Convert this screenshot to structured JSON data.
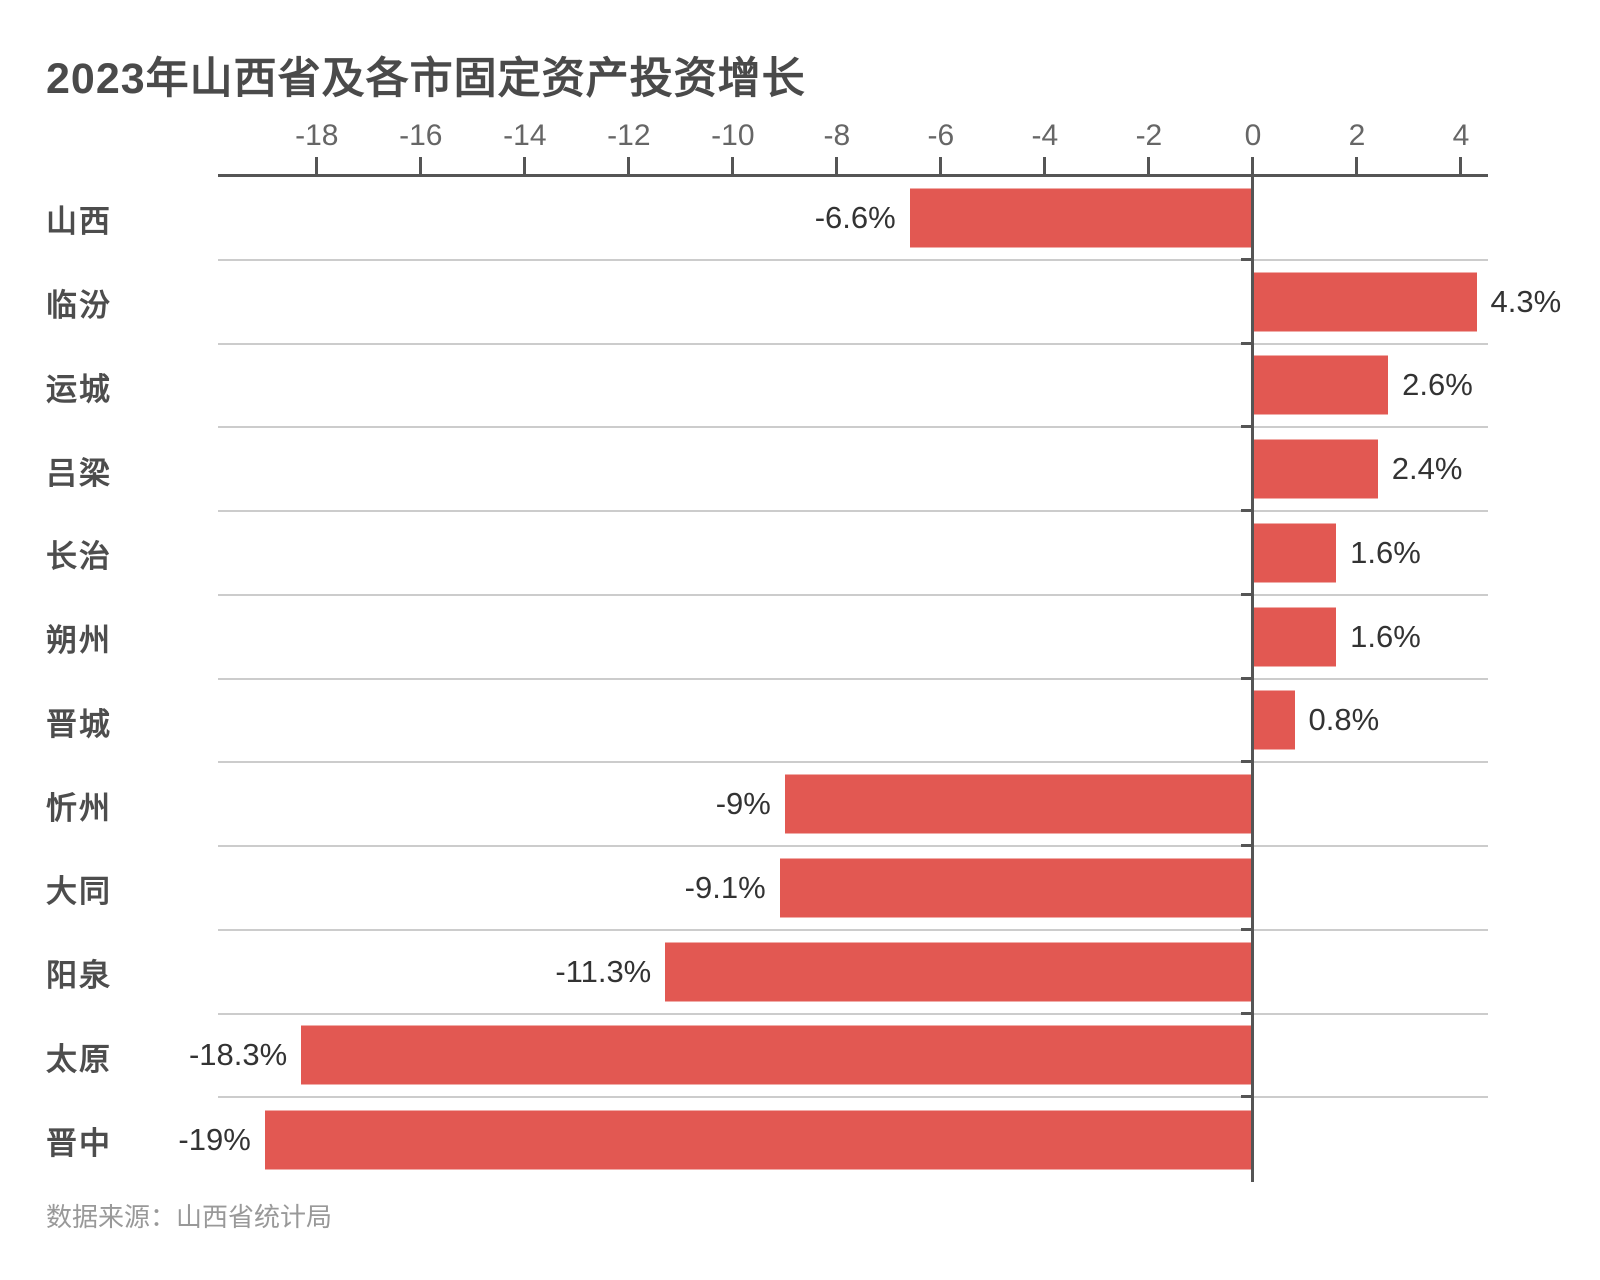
{
  "title": "2023年山西省及各市固定资产投资增长",
  "source": "数据来源：山西省统计局",
  "chart_data": {
    "type": "bar",
    "orientation": "horizontal",
    "title": "2023年山西省及各市固定资产投资增长",
    "categories": [
      "山西",
      "临汾",
      "运城",
      "吕梁",
      "长治",
      "朔州",
      "晋城",
      "忻州",
      "大同",
      "阳泉",
      "太原",
      "晋中"
    ],
    "values": [
      -6.6,
      4.3,
      2.6,
      2.4,
      1.6,
      1.6,
      0.8,
      -9,
      -9.1,
      -11.3,
      -18.3,
      -19
    ],
    "value_labels": [
      "-6.6%",
      "4.3%",
      "2.6%",
      "2.4%",
      "1.6%",
      "1.6%",
      "0.8%",
      "-9%",
      "-9.1%",
      "-11.3%",
      "-18.3%",
      "-19%"
    ],
    "unit": "%",
    "xlabel": "",
    "ylabel": "",
    "xlim": [
      -19.9,
      4.52
    ],
    "x_ticks": [
      -18,
      -16,
      -14,
      -12,
      -10,
      -8,
      -6,
      -4,
      -2,
      0,
      2,
      4
    ],
    "x_tick_labels": [
      "-18",
      "-16",
      "-14",
      "-12",
      "-10",
      "-8",
      "-6",
      "-4",
      "-2",
      "0",
      "2",
      "4"
    ],
    "grid": "horizontal-row-separators",
    "legend": "none",
    "source": "数据来源：山西省统计局",
    "colors": {
      "bar": "#E25852",
      "axis": "#555555",
      "grid": "#CCCCCC",
      "title": "#4A4A4A",
      "category_label": "#4D4D4D",
      "value_label": "#333333",
      "tick_label": "#666666",
      "source": "#999999",
      "background": "#FFFFFF"
    }
  }
}
